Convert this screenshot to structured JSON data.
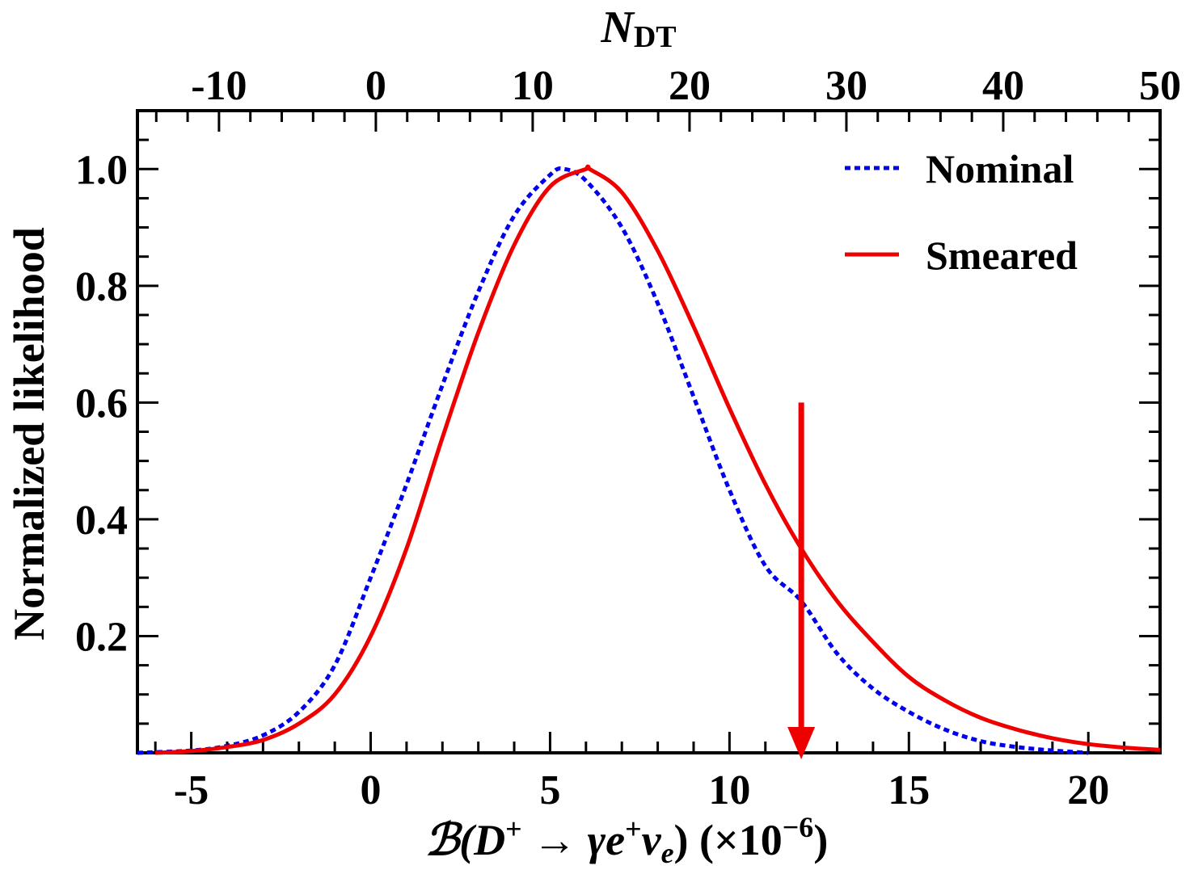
{
  "chart_data": {
    "type": "line",
    "xlabel": {
      "prefix": "ℬ(",
      "D": "D",
      "D_sup": "+",
      "arrow": " → ",
      "gamma": "γ",
      "e": "e",
      "e_sup": "+",
      "nu": "ν",
      "nu_sub": "e",
      "suffix": ") (×10",
      "exp": "−6",
      "close": ")"
    },
    "ylabel": "Normalized likelihood",
    "top_axis": {
      "label_main": "N",
      "label_sub": "DT",
      "range": [
        -15.2,
        50
      ],
      "ticks": [
        -10,
        0,
        10,
        20,
        30,
        40,
        50
      ],
      "tick_labels": [
        "-10",
        "0",
        "10",
        "20",
        "30",
        "40",
        "50"
      ]
    },
    "xlim": [
      -6.5,
      22
    ],
    "ylim": [
      0,
      1.1
    ],
    "x_ticks": [
      -5,
      0,
      5,
      10,
      15,
      20
    ],
    "x_tick_labels": [
      "-5",
      "0",
      "5",
      "10",
      "15",
      "20"
    ],
    "y_ticks": [
      0.2,
      0.4,
      0.6,
      0.8,
      1.0
    ],
    "y_tick_labels": [
      "0.2",
      "0.4",
      "0.6",
      "0.8",
      "1.0"
    ],
    "legend_position": "top-right",
    "series": [
      {
        "name": "Nominal",
        "color": "#0000ee",
        "style": "dotted",
        "x": [
          -6.5,
          -5,
          -4,
          -3,
          -2,
          -1,
          0,
          1,
          2,
          3,
          4,
          5,
          5.4,
          6,
          7,
          8,
          9,
          10,
          11,
          12,
          13,
          14,
          15,
          16,
          17,
          18,
          19,
          20
        ],
        "y": [
          0.0,
          0.004,
          0.012,
          0.03,
          0.07,
          0.15,
          0.3,
          0.46,
          0.63,
          0.79,
          0.92,
          0.99,
          1.0,
          0.98,
          0.9,
          0.77,
          0.61,
          0.45,
          0.32,
          0.26,
          0.17,
          0.11,
          0.07,
          0.04,
          0.02,
          0.01,
          0.004,
          0.0
        ]
      },
      {
        "name": "Smeared",
        "color": "#ee0000",
        "style": "solid",
        "x": [
          -6,
          -5,
          -4,
          -3,
          -2,
          -1,
          0,
          1,
          2,
          3,
          4,
          5,
          6,
          6.1,
          7,
          8,
          9,
          10,
          11,
          12,
          13,
          14,
          15,
          16,
          17,
          18,
          19,
          20,
          21,
          22
        ],
        "y": [
          0.0,
          0.003,
          0.01,
          0.022,
          0.05,
          0.1,
          0.2,
          0.35,
          0.54,
          0.72,
          0.87,
          0.97,
          1.0,
          1.0,
          0.96,
          0.86,
          0.73,
          0.59,
          0.46,
          0.35,
          0.26,
          0.19,
          0.13,
          0.09,
          0.06,
          0.04,
          0.025,
          0.015,
          0.009,
          0.005
        ]
      }
    ],
    "upper_limit_arrow": {
      "x": 12.0,
      "y_from": 0.6,
      "y_to": 0.0,
      "color": "#ee0000"
    }
  }
}
